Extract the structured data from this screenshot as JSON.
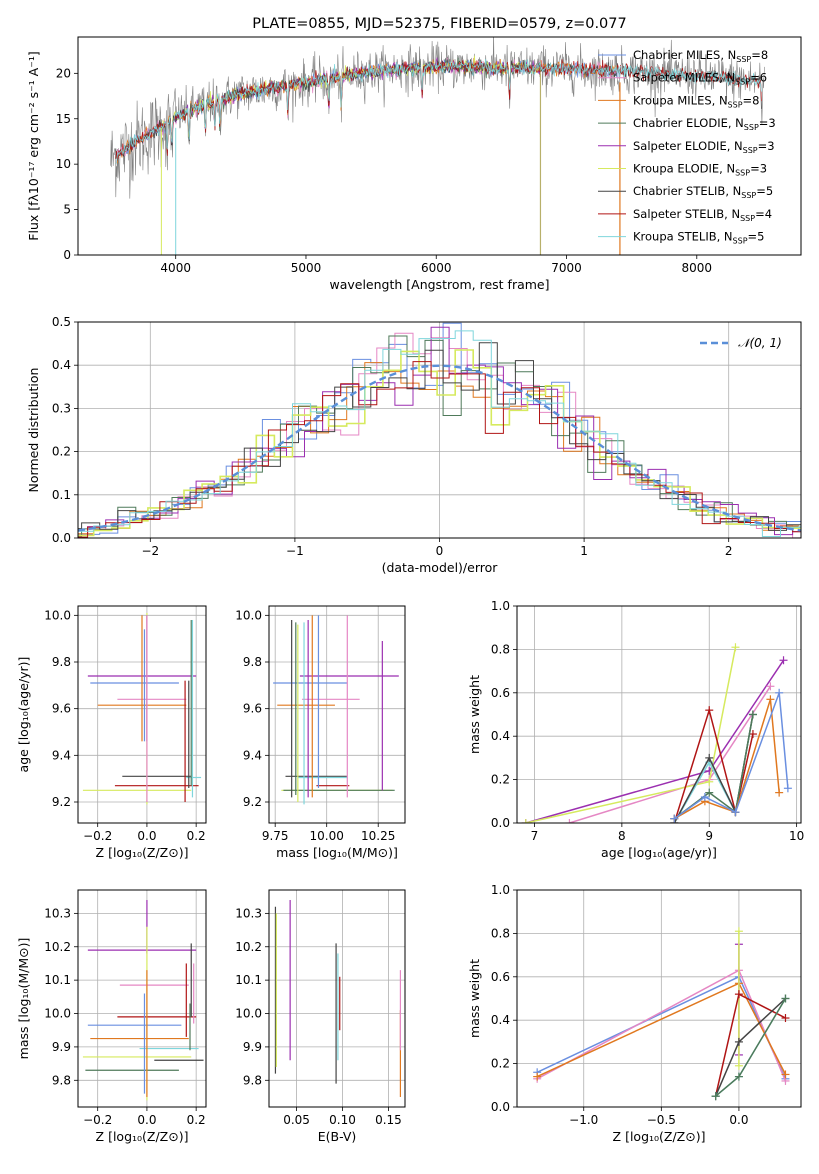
{
  "colors": {
    "Chabrier MILES": "#6a8fe0",
    "Salpeter MILES": "#e587c4",
    "Kroupa MILES": "#e0781f",
    "Chabrier ELODIE": "#4f7a5a",
    "Salpeter ELODIE": "#9b2fb0",
    "Kroupa ELODIE": "#d6ea5e",
    "Chabrier STELIB": "#444444",
    "Salpeter STELIB": "#b01515",
    "Kroupa STELIB": "#7fd6dc",
    "gaussian": "#5a8fd8"
  },
  "chart_data": [
    {
      "id": "spectrum",
      "type": "line",
      "title": "PLATE=0855, MJD=52375, FIBERID=0579, z=0.077",
      "xlabel": "wavelength [Angstrom, rest frame]",
      "ylabel": "Flux [fλ10⁻¹⁷ erg cm⁻² s⁻¹ A⁻¹]",
      "xlim": [
        3250,
        8800
      ],
      "ylim": [
        0,
        24
      ],
      "xticks": [
        4000,
        5000,
        6000,
        7000,
        8000
      ],
      "yticks": [
        0,
        5,
        10,
        15,
        20
      ],
      "grid": false,
      "legend": "upper right",
      "legend_entries": [
        "Chabrier MILES, N_SSP=8",
        "Salpeter MILES, N_SSP=6",
        "Kroupa MILES, N_SSP=8",
        "Chabrier ELODIE, N_SSP=3",
        "Salpeter ELODIE, N_SSP=3",
        "Kroupa ELODIE, N_SSP=3",
        "Chabrier STELIB, N_SSP=5",
        "Salpeter STELIB, N_SSP=4",
        "Kroupa STELIB, N_SSP=5"
      ],
      "continuum": [
        [
          3500,
          10.5
        ],
        [
          3700,
          12.5
        ],
        [
          3900,
          14.2
        ],
        [
          4000,
          15.2
        ],
        [
          4200,
          16.5
        ],
        [
          4500,
          17.8
        ],
        [
          5000,
          19.0
        ],
        [
          5500,
          20.2
        ],
        [
          6000,
          20.8
        ],
        [
          6500,
          20.6
        ],
        [
          7000,
          20.5
        ],
        [
          7500,
          20.2
        ],
        [
          8000,
          19.7
        ],
        [
          8500,
          19.1
        ]
      ],
      "observed": "grey noisy spectrum 3500–8520 A following the continuum"
    },
    {
      "id": "residuals",
      "type": "histogram",
      "xlabel": "(data-model)/error",
      "ylabel": "Normed distribution",
      "xlim": [
        -2.5,
        2.5
      ],
      "ylim": [
        0,
        0.5
      ],
      "xticks": [
        -2,
        -1,
        0,
        1,
        2
      ],
      "yticks": [
        0.0,
        0.1,
        0.2,
        0.3,
        0.4,
        0.5
      ],
      "grid": true,
      "legend": "upper right",
      "legend_entries": [
        "𝒩(0, 1)"
      ],
      "gaussian": {
        "mean": 0,
        "sigma": 1
      },
      "bin_width": 0.125
    },
    {
      "id": "age-vs-Z",
      "type": "errorbar",
      "xlabel": "Z [log₁₀(Z/Z⊙)]",
      "ylabel": "age  [log₁₀(age/yr)]",
      "xlim": [
        -0.28,
        0.24
      ],
      "ylim": [
        9.11,
        10.04
      ],
      "xticks": [
        -0.2,
        0.0,
        0.2
      ],
      "yticks": [
        9.2,
        9.4,
        9.6,
        9.8,
        10.0
      ],
      "grid": true,
      "points": [
        {
          "model": "Salpeter ELODIE",
          "x": -0.02,
          "xerr": 0.22,
          "y": 9.74,
          "yerr": 0
        },
        {
          "model": "Chabrier MILES",
          "x": -0.05,
          "xerr": 0.18,
          "y": 9.71,
          "yerr": 0
        },
        {
          "model": "Salpeter MILES",
          "x": 0.02,
          "xerr": 0.14,
          "y": 9.64,
          "yerr": 0
        },
        {
          "model": "Kroupa MILES",
          "x": -0.02,
          "xerr": 0.18,
          "y": 9.615,
          "yerr": 0
        },
        {
          "model": "Chabrier STELIB",
          "x": 0.04,
          "xerr": 0.14,
          "y": 9.31,
          "yerr": 0
        },
        {
          "model": "Kroupa STELIB",
          "x": 0.19,
          "xerr": 0.03,
          "y": 9.305,
          "yerr": 0
        },
        {
          "model": "Salpeter STELIB",
          "x": 0.04,
          "xerr": 0.17,
          "y": 9.27,
          "yerr": 0
        },
        {
          "model": "Kroupa ELODIE",
          "x": -0.04,
          "xerr": 0.22,
          "y": 9.25,
          "yerr": 0
        },
        {
          "model": "Kroupa MILES",
          "x": -0.02,
          "xerr": 0,
          "y": 9.73,
          "yerr": 0.27
        },
        {
          "model": "Chabrier MILES",
          "x": -0.01,
          "xerr": 0,
          "y": 9.7,
          "yerr": 0.24
        },
        {
          "model": "Kroupa ELODIE",
          "x": 0.0,
          "xerr": 0,
          "y": 9.6,
          "yerr": 0.41
        },
        {
          "model": "Salpeter ELODIE",
          "x": 0.0,
          "xerr": 0,
          "y": 9.73,
          "yerr": 0.27
        },
        {
          "model": "Salpeter MILES",
          "x": 0.0,
          "xerr": 0,
          "y": 9.6,
          "yerr": 0.4
        },
        {
          "model": "Salpeter STELIB",
          "x": 0.155,
          "xerr": 0,
          "y": 9.46,
          "yerr": 0.26
        },
        {
          "model": "Chabrier STELIB",
          "x": 0.17,
          "xerr": 0,
          "y": 9.49,
          "yerr": 0.23
        },
        {
          "model": "Chabrier ELODIE",
          "x": 0.18,
          "xerr": 0,
          "y": 9.625,
          "yerr": 0.355
        },
        {
          "model": "Kroupa STELIB",
          "x": 0.185,
          "xerr": 0,
          "y": 9.6,
          "yerr": 0.38
        }
      ]
    },
    {
      "id": "age-vs-mass",
      "type": "errorbar",
      "xlabel": "mass [log₁₀(M/M⊙)]",
      "ylabel": "",
      "xlim": [
        9.72,
        10.38
      ],
      "ylim": [
        9.11,
        10.04
      ],
      "xticks": [
        9.75,
        10.0,
        10.25
      ],
      "yticks": [
        9.2,
        9.4,
        9.6,
        9.8,
        10.0
      ],
      "grid": true,
      "points": [
        {
          "model": "Salpeter ELODIE",
          "x": 10.11,
          "xerr": 0.24,
          "y": 9.74,
          "yerr": 0
        },
        {
          "model": "Chabrier MILES",
          "x": 9.92,
          "xerr": 0.18,
          "y": 9.71,
          "yerr": 0
        },
        {
          "model": "Salpeter MILES",
          "x": 10.02,
          "xerr": 0.14,
          "y": 9.64,
          "yerr": 0
        },
        {
          "model": "Kroupa MILES",
          "x": 9.9,
          "xerr": 0.14,
          "y": 9.615,
          "yerr": 0
        },
        {
          "model": "Chabrier STELIB",
          "x": 9.95,
          "xerr": 0.15,
          "y": 9.31,
          "yerr": 0
        },
        {
          "model": "Kroupa STELIB",
          "x": 9.98,
          "xerr": 0.12,
          "y": 9.305,
          "yerr": 0
        },
        {
          "model": "Salpeter STELIB",
          "x": 10.03,
          "xerr": 0.08,
          "y": 9.27,
          "yerr": 0
        },
        {
          "model": "Kroupa ELODIE",
          "x": 10.05,
          "xerr": 0.27,
          "y": 9.25,
          "yerr": 0
        },
        {
          "model": "Chabrier ELODIE",
          "x": 10.06,
          "xerr": 0.27,
          "y": 9.25,
          "yerr": 0
        },
        {
          "model": "Chabrier STELIB",
          "x": 9.83,
          "xerr": 0,
          "y": 9.6,
          "yerr": 0.38
        },
        {
          "model": "Chabrier ELODIE",
          "x": 9.85,
          "xerr": 0,
          "y": 9.6,
          "yerr": 0.37
        },
        {
          "model": "Kroupa ELODIE",
          "x": 9.86,
          "xerr": 0,
          "y": 9.58,
          "yerr": 0.38
        },
        {
          "model": "Kroupa STELIB",
          "x": 9.89,
          "xerr": 0,
          "y": 9.58,
          "yerr": 0.39
        },
        {
          "model": "Salpeter ELODIE",
          "x": 9.91,
          "xerr": 0,
          "y": 9.6,
          "yerr": 0.38
        },
        {
          "model": "Kroupa MILES",
          "x": 9.93,
          "xerr": 0,
          "y": 9.61,
          "yerr": 0.39
        },
        {
          "model": "Chabrier MILES",
          "x": 9.96,
          "xerr": 0,
          "y": 9.63,
          "yerr": 0.37
        },
        {
          "model": "Salpeter MILES",
          "x": 10.1,
          "xerr": 0,
          "y": 9.61,
          "yerr": 0.39
        },
        {
          "model": "Salpeter ELODIE",
          "x": 10.27,
          "xerr": 0,
          "y": 9.57,
          "yerr": 0.32
        }
      ]
    },
    {
      "id": "massweight-vs-age",
      "type": "line",
      "xlabel": "age  [log₁₀(age/yr)]",
      "ylabel": "mass weight",
      "xlim": [
        6.8,
        10.05
      ],
      "ylim": [
        0,
        1.0
      ],
      "xticks": [
        7,
        8,
        9,
        10
      ],
      "yticks": [
        0.0,
        0.2,
        0.4,
        0.6,
        0.8,
        1.0
      ],
      "grid": true,
      "series": [
        {
          "model": "Salpeter ELODIE",
          "x": [
            6.9,
            9.0,
            9.85
          ],
          "y": [
            0.0,
            0.24,
            0.75
          ]
        },
        {
          "model": "Salpeter MILES",
          "x": [
            7.4,
            9.0,
            9.7
          ],
          "y": [
            0.0,
            0.2,
            0.63
          ]
        },
        {
          "model": "Kroupa ELODIE",
          "x": [
            6.9,
            9.0,
            9.3
          ],
          "y": [
            0.0,
            0.19,
            0.81
          ]
        },
        {
          "model": "Salpeter STELIB",
          "x": [
            8.6,
            9.0,
            9.3,
            9.5
          ],
          "y": [
            0.0,
            0.52,
            0.05,
            0.41
          ]
        },
        {
          "model": "Kroupa STELIB",
          "x": [
            8.6,
            9.0,
            9.3,
            9.5
          ],
          "y": [
            0.0,
            0.28,
            0.05,
            0.5
          ]
        },
        {
          "model": "Chabrier STELIB",
          "x": [
            8.6,
            9.0,
            9.3,
            9.5
          ],
          "y": [
            0.0,
            0.3,
            0.05,
            0.5
          ]
        },
        {
          "model": "Chabrier ELODIE",
          "x": [
            8.6,
            9.0,
            9.3,
            9.5
          ],
          "y": [
            0.02,
            0.14,
            0.05,
            0.5
          ]
        },
        {
          "model": "Kroupa MILES",
          "x": [
            8.6,
            8.95,
            9.3,
            9.7,
            9.8
          ],
          "y": [
            0.02,
            0.1,
            0.05,
            0.57,
            0.14
          ]
        },
        {
          "model": "Chabrier MILES",
          "x": [
            8.6,
            8.95,
            9.3,
            9.8,
            9.9
          ],
          "y": [
            0.02,
            0.12,
            0.05,
            0.6,
            0.16
          ]
        }
      ]
    },
    {
      "id": "mass-vs-Z",
      "type": "errorbar",
      "xlabel": "Z [log₁₀(Z/Z⊙)]",
      "ylabel": "mass [log₁₀(M/M⊙)]",
      "xlim": [
        -0.28,
        0.24
      ],
      "ylim": [
        9.72,
        10.37
      ],
      "xticks": [
        -0.2,
        0.0,
        0.2
      ],
      "yticks": [
        9.8,
        9.9,
        10.0,
        10.1,
        10.2,
        10.3
      ],
      "grid": true,
      "points": [
        {
          "model": "Salpeter ELODIE",
          "x": -0.02,
          "xerr": 0.22,
          "y": 10.19,
          "yerr": 0
        },
        {
          "model": "Salpeter MILES",
          "x": 0.03,
          "xerr": 0.14,
          "y": 10.085,
          "yerr": 0
        },
        {
          "model": "Salpeter STELIB",
          "x": 0.04,
          "xerr": 0.16,
          "y": 9.99,
          "yerr": 0
        },
        {
          "model": "Chabrier MILES",
          "x": -0.05,
          "xerr": 0.19,
          "y": 9.965,
          "yerr": 0
        },
        {
          "model": "Kroupa MILES",
          "x": -0.03,
          "xerr": 0.2,
          "y": 9.925,
          "yerr": 0
        },
        {
          "model": "Kroupa STELIB",
          "x": 0.09,
          "xerr": 0.12,
          "y": 9.895,
          "yerr": 0
        },
        {
          "model": "Kroupa ELODIE",
          "x": -0.04,
          "xerr": 0.22,
          "y": 9.87,
          "yerr": 0
        },
        {
          "model": "Chabrier STELIB",
          "x": 0.13,
          "xerr": 0.1,
          "y": 9.86,
          "yerr": 0
        },
        {
          "model": "Chabrier ELODIE",
          "x": -0.06,
          "xerr": 0.19,
          "y": 9.83,
          "yerr": 0
        },
        {
          "model": "Salpeter ELODIE",
          "x": 0.0,
          "xerr": 0,
          "y": 10.26,
          "yerr": 0.08
        },
        {
          "model": "Kroupa ELODIE",
          "x": 0.0,
          "xerr": 0,
          "y": 10.0,
          "yerr": 0.26
        },
        {
          "model": "Chabrier MILES",
          "x": -0.01,
          "xerr": 0,
          "y": 9.91,
          "yerr": 0.15
        },
        {
          "model": "Kroupa MILES",
          "x": 0.0,
          "xerr": 0,
          "y": 9.94,
          "yerr": 0.19
        },
        {
          "model": "Salpeter STELIB",
          "x": 0.16,
          "xerr": 0,
          "y": 10.04,
          "yerr": 0.11
        },
        {
          "model": "Chabrier STELIB",
          "x": 0.18,
          "xerr": 0,
          "y": 10.1,
          "yerr": 0.11
        },
        {
          "model": "Salpeter MILES",
          "x": 0.19,
          "xerr": 0,
          "y": 10.06,
          "yerr": 0.09
        },
        {
          "model": "Chabrier ELODIE",
          "x": 0.175,
          "xerr": 0,
          "y": 9.96,
          "yerr": 0.07
        }
      ]
    },
    {
      "id": "mass-vs-EBV",
      "type": "errorbar",
      "xlabel": "E(B-V)",
      "ylabel": "",
      "xlim": [
        0.02,
        0.168
      ],
      "ylim": [
        9.72,
        10.37
      ],
      "xticks": [
        0.05,
        0.1,
        0.15
      ],
      "yticks": [
        9.8,
        9.9,
        10.0,
        10.1,
        10.2,
        10.3
      ],
      "grid": true,
      "points": [
        {
          "model": "Chabrier STELIB",
          "x": 0.027,
          "xerr": 0,
          "y": 10.07,
          "yerr": 0.25
        },
        {
          "model": "Kroupa ELODIE",
          "x": 0.028,
          "xerr": 0,
          "y": 10.07,
          "yerr": 0.23
        },
        {
          "model": "Salpeter ELODIE",
          "x": 0.043,
          "xerr": 0,
          "y": 10.1,
          "yerr": 0.24
        },
        {
          "model": "Chabrier STELIB",
          "x": 0.093,
          "xerr": 0,
          "y": 10.0,
          "yerr": 0.21
        },
        {
          "model": "Kroupa STELIB",
          "x": 0.095,
          "xerr": 0,
          "y": 10.02,
          "yerr": 0.16
        },
        {
          "model": "Salpeter STELIB",
          "x": 0.097,
          "xerr": 0,
          "y": 10.03,
          "yerr": 0.08
        },
        {
          "model": "Kroupa MILES",
          "x": 0.163,
          "xerr": 0,
          "y": 9.88,
          "yerr": 0.13
        },
        {
          "model": "Salpeter MILES",
          "x": 0.163,
          "xerr": 0,
          "y": 10.01,
          "yerr": 0.12
        }
      ]
    },
    {
      "id": "massweight-vs-Z",
      "type": "line",
      "xlabel": "Z [log₁₀(Z/Z⊙)]",
      "ylabel": "mass weight",
      "xlim": [
        -1.43,
        0.4
      ],
      "ylim": [
        0,
        1.0
      ],
      "xticks": [
        -1.0,
        -0.5,
        0.0
      ],
      "yticks": [
        0.0,
        0.2,
        0.4,
        0.6,
        0.8,
        1.0
      ],
      "grid": true,
      "series": [
        {
          "model": "Chabrier MILES",
          "x": [
            -1.3,
            0.0,
            0.3
          ],
          "y": [
            0.16,
            0.6,
            0.13
          ]
        },
        {
          "model": "Salpeter MILES",
          "x": [
            -1.3,
            0.0,
            0.3
          ],
          "y": [
            0.13,
            0.63,
            0.12
          ]
        },
        {
          "model": "Kroupa MILES",
          "x": [
            -1.3,
            0.0,
            0.3
          ],
          "y": [
            0.14,
            0.57,
            0.15
          ]
        },
        {
          "model": "Salpeter ELODIE",
          "x": [
            0.0,
            0.0
          ],
          "y": [
            0.75,
            0.24
          ]
        },
        {
          "model": "Kroupa ELODIE",
          "x": [
            0.0,
            0.0
          ],
          "y": [
            0.81,
            0.19
          ]
        },
        {
          "model": "Salpeter STELIB",
          "x": [
            -0.15,
            0.0,
            0.3
          ],
          "y": [
            0.05,
            0.52,
            0.41
          ]
        },
        {
          "model": "Chabrier STELIB",
          "x": [
            -0.15,
            0.0,
            0.3
          ],
          "y": [
            0.05,
            0.3,
            0.5
          ]
        },
        {
          "model": "Kroupa STELIB",
          "x": [
            -0.15,
            0.0,
            0.3
          ],
          "y": [
            0.05,
            0.14,
            0.5
          ]
        },
        {
          "model": "Chabrier ELODIE",
          "x": [
            -0.15,
            0.0,
            0.3
          ],
          "y": [
            0.05,
            0.14,
            0.5
          ]
        }
      ]
    }
  ]
}
